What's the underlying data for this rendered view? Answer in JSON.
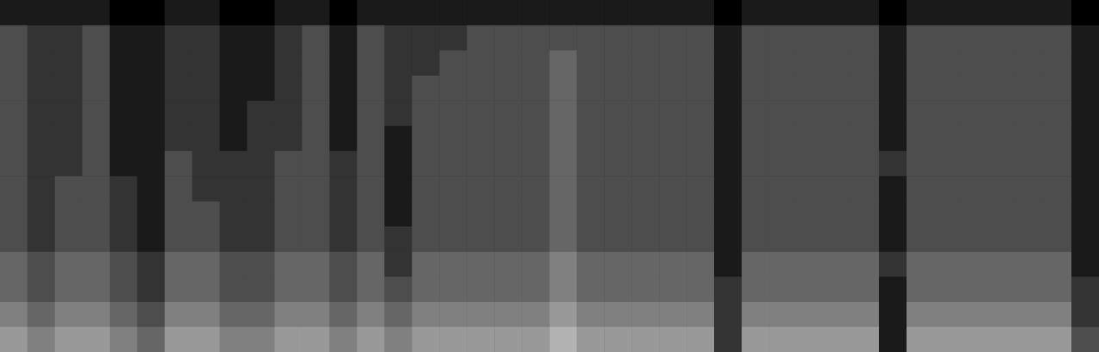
{
  "chart_data": {
    "type": "heatmap",
    "tick_labels": false,
    "grid": false,
    "color_range": [
      0,
      10
    ],
    "cells": [
      [
        6,
        5,
        6,
        6,
        5,
        4,
        6,
        6,
        5,
        5,
        6,
        6,
        5,
        6,
        5,
        6,
        6,
        6,
        6,
        6,
        7,
        6,
        6,
        6,
        6,
        6,
        2,
        6,
        6,
        6,
        6,
        6,
        1,
        6,
        6,
        6,
        6,
        6,
        6,
        3
      ],
      [
        5,
        4,
        5,
        5,
        4,
        3,
        5,
        5,
        4,
        4,
        5,
        5,
        4,
        5,
        4,
        5,
        5,
        5,
        5,
        5,
        6,
        5,
        5,
        5,
        5,
        5,
        2,
        5,
        5,
        5,
        5,
        5,
        1,
        5,
        5,
        5,
        5,
        5,
        5,
        2
      ],
      [
        4,
        3,
        4,
        4,
        3,
        2,
        4,
        4,
        3,
        3,
        4,
        4,
        3,
        4,
        3,
        4,
        4,
        4,
        4,
        4,
        5,
        4,
        4,
        4,
        4,
        4,
        2,
        4,
        4,
        4,
        4,
        4,
        1,
        4,
        4,
        4,
        4,
        4,
        4,
        2
      ],
      [
        4,
        3,
        4,
        4,
        3,
        2,
        4,
        4,
        3,
        3,
        4,
        4,
        3,
        4,
        2,
        4,
        4,
        4,
        4,
        4,
        5,
        4,
        4,
        4,
        4,
        4,
        1,
        4,
        4,
        4,
        4,
        4,
        2,
        4,
        4,
        4,
        4,
        4,
        4,
        1
      ],
      [
        3,
        2,
        3,
        3,
        2,
        1,
        3,
        3,
        2,
        2,
        3,
        3,
        2,
        3,
        2,
        3,
        3,
        3,
        3,
        3,
        4,
        3,
        3,
        3,
        3,
        3,
        1,
        3,
        3,
        3,
        3,
        3,
        1,
        3,
        3,
        3,
        3,
        3,
        3,
        1
      ],
      [
        3,
        2,
        3,
        3,
        2,
        1,
        3,
        3,
        2,
        2,
        3,
        3,
        2,
        3,
        1,
        3,
        3,
        3,
        3,
        3,
        4,
        3,
        3,
        3,
        3,
        3,
        1,
        3,
        3,
        3,
        3,
        3,
        1,
        3,
        3,
        3,
        3,
        3,
        3,
        1
      ],
      [
        3,
        2,
        3,
        3,
        2,
        1,
        3,
        2,
        2,
        2,
        3,
        3,
        2,
        3,
        1,
        3,
        3,
        3,
        3,
        3,
        4,
        3,
        3,
        3,
        3,
        3,
        1,
        3,
        3,
        3,
        3,
        3,
        1,
        3,
        3,
        3,
        3,
        3,
        3,
        1
      ],
      [
        3,
        2,
        2,
        3,
        1,
        1,
        3,
        2,
        2,
        2,
        3,
        3,
        2,
        3,
        1,
        3,
        3,
        3,
        3,
        3,
        4,
        3,
        3,
        3,
        3,
        3,
        1,
        3,
        3,
        3,
        3,
        3,
        2,
        3,
        3,
        3,
        3,
        3,
        3,
        1
      ],
      [
        3,
        2,
        2,
        3,
        1,
        1,
        2,
        2,
        1,
        2,
        2,
        3,
        1,
        3,
        1,
        3,
        3,
        3,
        3,
        3,
        4,
        3,
        3,
        3,
        3,
        3,
        1,
        3,
        3,
        3,
        3,
        3,
        1,
        3,
        3,
        3,
        3,
        3,
        3,
        1
      ],
      [
        3,
        2,
        2,
        3,
        1,
        1,
        2,
        2,
        1,
        2,
        2,
        3,
        1,
        3,
        2,
        3,
        3,
        3,
        3,
        3,
        4,
        3,
        3,
        3,
        3,
        3,
        1,
        3,
        3,
        3,
        3,
        3,
        1,
        3,
        3,
        3,
        3,
        3,
        3,
        1
      ],
      [
        3,
        2,
        2,
        3,
        1,
        1,
        2,
        2,
        1,
        1,
        2,
        3,
        1,
        3,
        2,
        3,
        3,
        3,
        3,
        3,
        4,
        3,
        3,
        3,
        3,
        3,
        1,
        3,
        3,
        3,
        3,
        3,
        1,
        3,
        3,
        3,
        3,
        3,
        3,
        1
      ],
      [
        3,
        2,
        2,
        3,
        1,
        1,
        2,
        2,
        1,
        1,
        2,
        3,
        1,
        3,
        2,
        2,
        3,
        3,
        3,
        3,
        4,
        3,
        3,
        3,
        3,
        3,
        1,
        3,
        3,
        3,
        3,
        3,
        1,
        3,
        3,
        3,
        3,
        3,
        3,
        1
      ],
      [
        3,
        2,
        2,
        3,
        1,
        1,
        2,
        2,
        1,
        1,
        2,
        3,
        1,
        3,
        2,
        2,
        2,
        3,
        3,
        3,
        3,
        3,
        3,
        3,
        3,
        3,
        1,
        3,
        3,
        3,
        3,
        3,
        1,
        3,
        3,
        3,
        3,
        3,
        3,
        1
      ],
      [
        1,
        1,
        1,
        1,
        0,
        0,
        1,
        1,
        0,
        0,
        1,
        1,
        0,
        1,
        1,
        1,
        1,
        1,
        1,
        1,
        1,
        1,
        1,
        1,
        1,
        1,
        0,
        1,
        1,
        1,
        1,
        1,
        0,
        1,
        1,
        1,
        1,
        1,
        1,
        0
      ]
    ]
  }
}
